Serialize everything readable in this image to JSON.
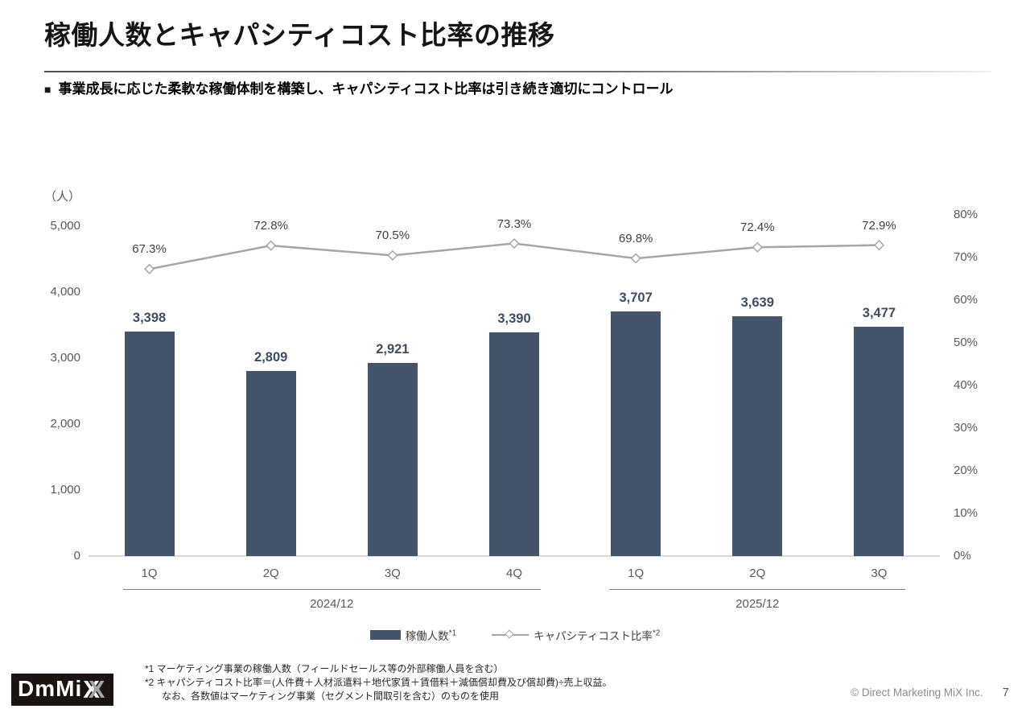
{
  "header": {
    "title": "稼働人数とキャパシティコスト比率の推移",
    "bullet": "■",
    "subtitle": "事業成長に応じた柔軟な稼働体制を構築し、キャパシティコスト比率は引き続き適切にコントロール"
  },
  "chart_data": {
    "type": "bar+line combo",
    "title": "稼働人数とキャパシティコスト比率の推移",
    "unit_label": "（人）",
    "categories": [
      "1Q",
      "2Q",
      "3Q",
      "4Q",
      "1Q",
      "2Q",
      "3Q"
    ],
    "groups": [
      {
        "label": "2024/12",
        "from": 0,
        "to": 3
      },
      {
        "label": "2025/12",
        "from": 4,
        "to": 6
      }
    ],
    "series": [
      {
        "name": "稼働人数*1",
        "type": "bar",
        "axis": "left",
        "color": "#45546b",
        "values": [
          3398,
          2809,
          2921,
          3390,
          3707,
          3639,
          3477
        ],
        "labels": [
          "3,398",
          "2,809",
          "2,921",
          "3,390",
          "3,707",
          "3,639",
          "3,477"
        ]
      },
      {
        "name": "キャパシティコスト比率*2",
        "type": "line",
        "axis": "right",
        "color": "#a6a6a6",
        "marker": "open-diamond",
        "values": [
          67.3,
          72.8,
          70.5,
          73.3,
          69.8,
          72.4,
          72.9
        ],
        "labels": [
          "67.3%",
          "72.8%",
          "70.5%",
          "73.3%",
          "69.8%",
          "72.4%",
          "72.9%"
        ]
      }
    ],
    "left_axis": {
      "min": 0,
      "max": 5000,
      "step": 1000,
      "tick_labels": [
        "0",
        "1,000",
        "2,000",
        "3,000",
        "4,000",
        "5,000"
      ]
    },
    "right_axis": {
      "min": 0,
      "max": 80,
      "step": 10,
      "tick_labels": [
        "0%",
        "10%",
        "20%",
        "30%",
        "40%",
        "50%",
        "60%",
        "70%",
        "80%"
      ]
    },
    "grid": "off",
    "legend_position": "bottom"
  },
  "legend": {
    "items": [
      {
        "label": "稼働人数",
        "sup": "*1"
      },
      {
        "label": "キャパシティコスト比率",
        "sup": "*2"
      }
    ]
  },
  "footnotes": {
    "lines": [
      "*1 マーケティング事業の稼働人数（フィールドセールス等の外部稼働人員を含む）",
      "*2 キャパシティコスト比率＝(人件費＋人材派遣料＋地代家賃＋賃借料＋減価償却費及び償却費)÷売上収益。",
      "なお、各数値はマーケティング事業（セグメント間取引を含む）のものを使用"
    ]
  },
  "logo": {
    "text": "DmMi",
    "x1": "X",
    "x2": "X"
  },
  "footer": {
    "copyright": "© Direct Marketing MiX Inc.",
    "page_number": "7"
  }
}
